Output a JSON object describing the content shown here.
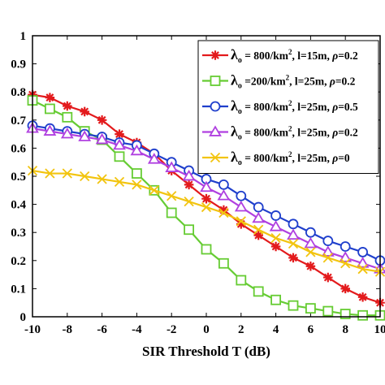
{
  "chart_data": {
    "type": "line",
    "xlabel": "SIR Threshold T (dB)",
    "ylabel": "",
    "xlim": [
      -10,
      10
    ],
    "ylim": [
      0,
      1
    ],
    "x_ticks": [
      -10,
      -8,
      -6,
      -4,
      -2,
      0,
      2,
      4,
      6,
      8,
      10
    ],
    "x_tick_labels": [
      "-10",
      "-8",
      "-6",
      "-4",
      "-2",
      "0",
      "2",
      "4",
      "6",
      "8",
      "10"
    ],
    "y_ticks": [
      0,
      0.1,
      0.2,
      0.3,
      0.4,
      0.5,
      0.6,
      0.7,
      0.8,
      0.9,
      1
    ],
    "y_tick_labels": [
      "0",
      "0.1",
      "0.2",
      "0.3",
      "0.4",
      "0.5",
      "0.6",
      "0.7",
      "0.8",
      "0.9",
      "1"
    ],
    "grid": false,
    "legend_position": "top-right",
    "x": [
      -10,
      -9,
      -8,
      -7,
      -6,
      -5,
      -4,
      -3,
      -2,
      -1,
      0,
      1,
      2,
      3,
      4,
      5,
      6,
      7,
      8,
      9,
      10
    ],
    "series": [
      {
        "name_parts": [
          "λ",
          "o",
          " = 800/km",
          "2",
          ", l=15m, ",
          "ρ",
          "=0.2"
        ],
        "color": "#e31a1c",
        "marker": "asterisk",
        "values": [
          0.79,
          0.78,
          0.75,
          0.73,
          0.7,
          0.65,
          0.62,
          0.58,
          0.52,
          0.47,
          0.42,
          0.38,
          0.33,
          0.29,
          0.25,
          0.21,
          0.18,
          0.14,
          0.1,
          0.07,
          0.05
        ]
      },
      {
        "name_parts": [
          "λ",
          "o",
          " =200/km",
          "2",
          ", l=25m, ",
          "ρ",
          "=0.2"
        ],
        "color": "#66cc33",
        "marker": "square",
        "values": [
          0.77,
          0.74,
          0.71,
          0.66,
          0.63,
          0.57,
          0.51,
          0.45,
          0.37,
          0.31,
          0.24,
          0.19,
          0.13,
          0.09,
          0.06,
          0.04,
          0.03,
          0.02,
          0.01,
          0.005,
          0.005
        ]
      },
      {
        "name_parts": [
          "λ",
          "o",
          " = 800/km",
          "2",
          ", l=25m, ",
          "ρ",
          "=0.5"
        ],
        "color": "#1f3fcc",
        "marker": "circle",
        "values": [
          0.68,
          0.67,
          0.66,
          0.65,
          0.64,
          0.62,
          0.61,
          0.58,
          0.55,
          0.52,
          0.49,
          0.47,
          0.43,
          0.39,
          0.36,
          0.33,
          0.3,
          0.27,
          0.25,
          0.23,
          0.2
        ]
      },
      {
        "name_parts": [
          "λ",
          "o",
          " = 800/km",
          "2",
          ", l=25m, ",
          "ρ",
          "=0.2"
        ],
        "color": "#b040e0",
        "marker": "triangle",
        "values": [
          0.67,
          0.66,
          0.65,
          0.64,
          0.63,
          0.61,
          0.59,
          0.56,
          0.53,
          0.5,
          0.46,
          0.43,
          0.39,
          0.35,
          0.32,
          0.29,
          0.26,
          0.23,
          0.21,
          0.19,
          0.17
        ]
      },
      {
        "name_parts": [
          "λ",
          "o",
          " = 800/km",
          "2",
          ", l=25m, ",
          "ρ",
          "=0"
        ],
        "color": "#f2c40f",
        "marker": "x",
        "values": [
          0.52,
          0.51,
          0.51,
          0.5,
          0.49,
          0.48,
          0.47,
          0.45,
          0.43,
          0.41,
          0.39,
          0.37,
          0.34,
          0.31,
          0.28,
          0.26,
          0.23,
          0.21,
          0.19,
          0.17,
          0.16
        ]
      }
    ]
  }
}
